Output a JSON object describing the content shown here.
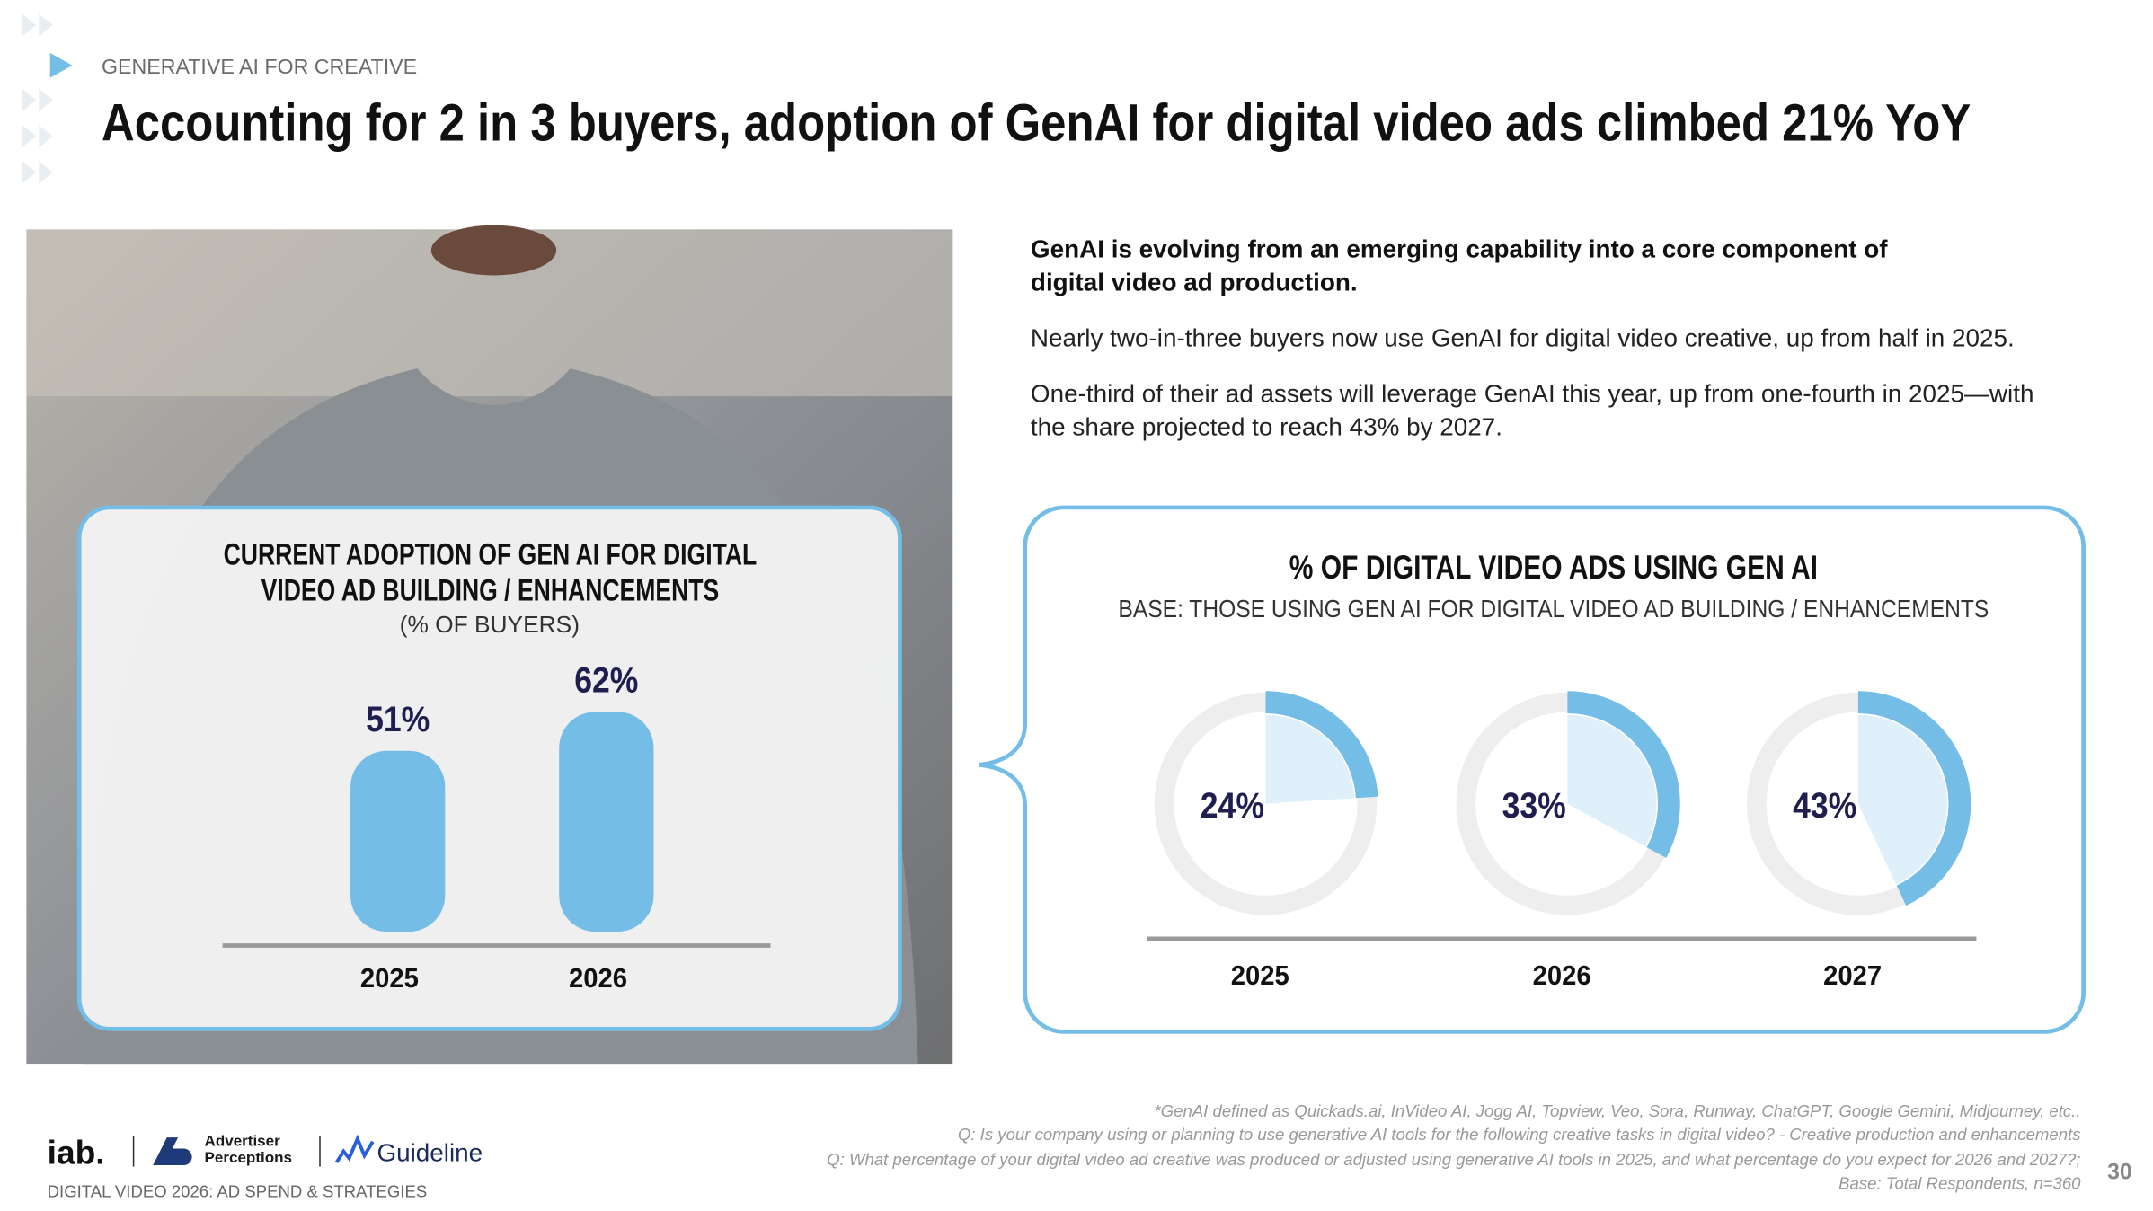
{
  "header": {
    "section": "GENERATIVE AI FOR CREATIVE",
    "title": "Accounting for 2 in 3 buyers, adoption of GenAI for digital video ads climbed 21% YoY"
  },
  "body": {
    "lead": "GenAI is evolving from an emerging capability into a core component of digital video ad production.",
    "paragraphs": [
      "Nearly two-in-three buyers now use GenAI for digital video creative, up from half in 2025.",
      "One-third of their ad assets will leverage GenAI this year, up from one-fourth in 2025—with the share projected to reach 43% by 2027."
    ]
  },
  "chart_data": [
    {
      "type": "bar",
      "title": "CURRENT ADOPTION OF GEN AI FOR DIGITAL VIDEO AD BUILDING / ENHANCEMENTS",
      "subtitle": "(% OF BUYERS)",
      "categories": [
        "2025",
        "2026"
      ],
      "values": [
        51,
        62
      ],
      "value_labels": [
        "51%",
        "62%"
      ],
      "color": "#74bde6"
    },
    {
      "type": "donut",
      "title": "% OF DIGITAL VIDEO ADS USING GEN AI",
      "subtitle": "BASE: THOSE USING GEN AI FOR DIGITAL VIDEO AD BUILDING / ENHANCEMENTS",
      "categories": [
        "2025",
        "2026",
        "2027"
      ],
      "values": [
        24,
        33,
        43
      ],
      "value_labels": [
        "24%",
        "33%",
        "43%"
      ],
      "color": "#74bde6"
    }
  ],
  "footer": {
    "notes": [
      "*GenAI defined as Quickads.ai, InVideo AI, Jogg AI, Topview, Veo, Sora, Runway, ChatGPT, Google Gemini, Midjourney, etc..",
      "Q: Is your company using or planning to use generative AI tools for the following creative tasks in digital video? - Creative production and enhancements",
      "Q: What percentage of your digital video ad creative was produced or adjusted using generative AI tools in 2025, and what percentage do you expect for 2026 and 2027?;",
      "Base: Total Respondents, n=360"
    ],
    "source": "DIGITAL VIDEO 2026: AD SPEND & STRATEGIES",
    "page": "30",
    "logos": [
      "iab.",
      "Advertiser Perceptions",
      "Guideline"
    ]
  }
}
